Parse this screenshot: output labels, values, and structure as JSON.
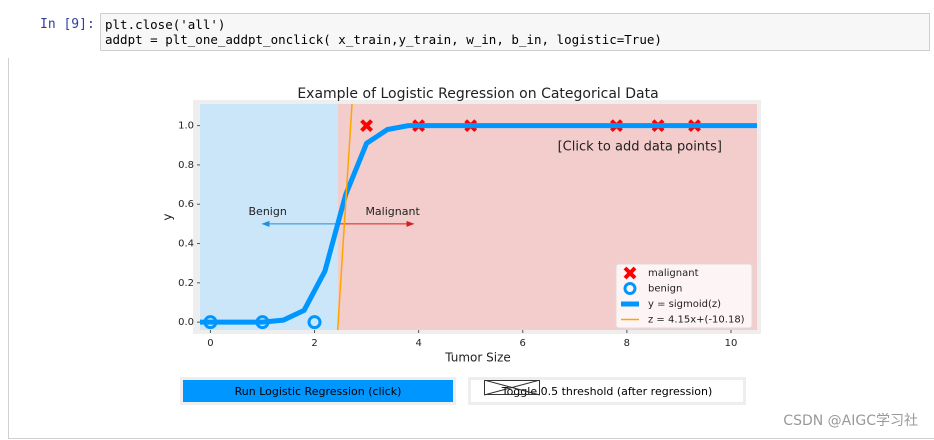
{
  "cell": {
    "prompt": "In [9]:",
    "code": [
      "plt.close('all')",
      "addpt = plt_one_addpt_onclick( x_train,y_train, w_in, b_in, logistic=True)"
    ]
  },
  "chart_data": {
    "type": "scatter",
    "title": "Example of Logistic Regression on Categorical Data",
    "xlabel": "Tumor Size",
    "ylabel": "y",
    "xlim": [
      -0.2,
      10.5
    ],
    "ylim": [
      -0.04,
      1.11
    ],
    "xticks": [
      0,
      2,
      4,
      6,
      8,
      10
    ],
    "yticks": [
      {
        "value": 0,
        "label": "0.0"
      },
      {
        "value": 0.2,
        "label": "0.2"
      },
      {
        "value": 0.4,
        "label": "0.4"
      },
      {
        "value": 0.6,
        "label": "0.6"
      },
      {
        "value": 0.8,
        "label": "0.8"
      },
      {
        "value": 1,
        "label": "1.0"
      }
    ],
    "shade": {
      "boundary": 2.45,
      "colors": [
        "#cbe6f9",
        "#f3cccc"
      ]
    },
    "series": [
      {
        "name": "malignant",
        "type": "scatter",
        "marker": "x",
        "color": "#ff0000",
        "x": [
          3,
          4,
          5,
          7.8,
          8.6,
          9.3
        ],
        "values": [
          1,
          1,
          1,
          1,
          1,
          1
        ]
      },
      {
        "name": "benign",
        "type": "scatter",
        "marker": "o",
        "color": "#0096ff",
        "x": [
          0,
          1,
          2
        ],
        "values": [
          0,
          0,
          0
        ]
      },
      {
        "name": "y = sigmoid(z)",
        "type": "line",
        "color": "#0096ff",
        "x": [
          -0.2,
          0.2,
          0.6,
          1.0,
          1.4,
          1.8,
          2.2,
          2.6,
          3.0,
          3.4,
          3.8,
          10.5
        ],
        "values": [
          0,
          0,
          0,
          0,
          0.01,
          0.06,
          0.26,
          0.65,
          0.91,
          0.98,
          1,
          1
        ]
      },
      {
        "name": "z = 4.15x+(-10.18)",
        "type": "line",
        "color": "#ffa500",
        "x": [
          2.43,
          2.72
        ],
        "values": [
          -0.1,
          1.11
        ]
      }
    ],
    "annotations": [
      "Benign",
      "Malignant",
      "[Click to add data points]"
    ],
    "legend": "lower right"
  },
  "buttons": [
    "Run Logistic Regression (click)",
    "Toggle 0.5 threshold (after regression)"
  ],
  "watermark": "CSDN @AIGC学习社"
}
